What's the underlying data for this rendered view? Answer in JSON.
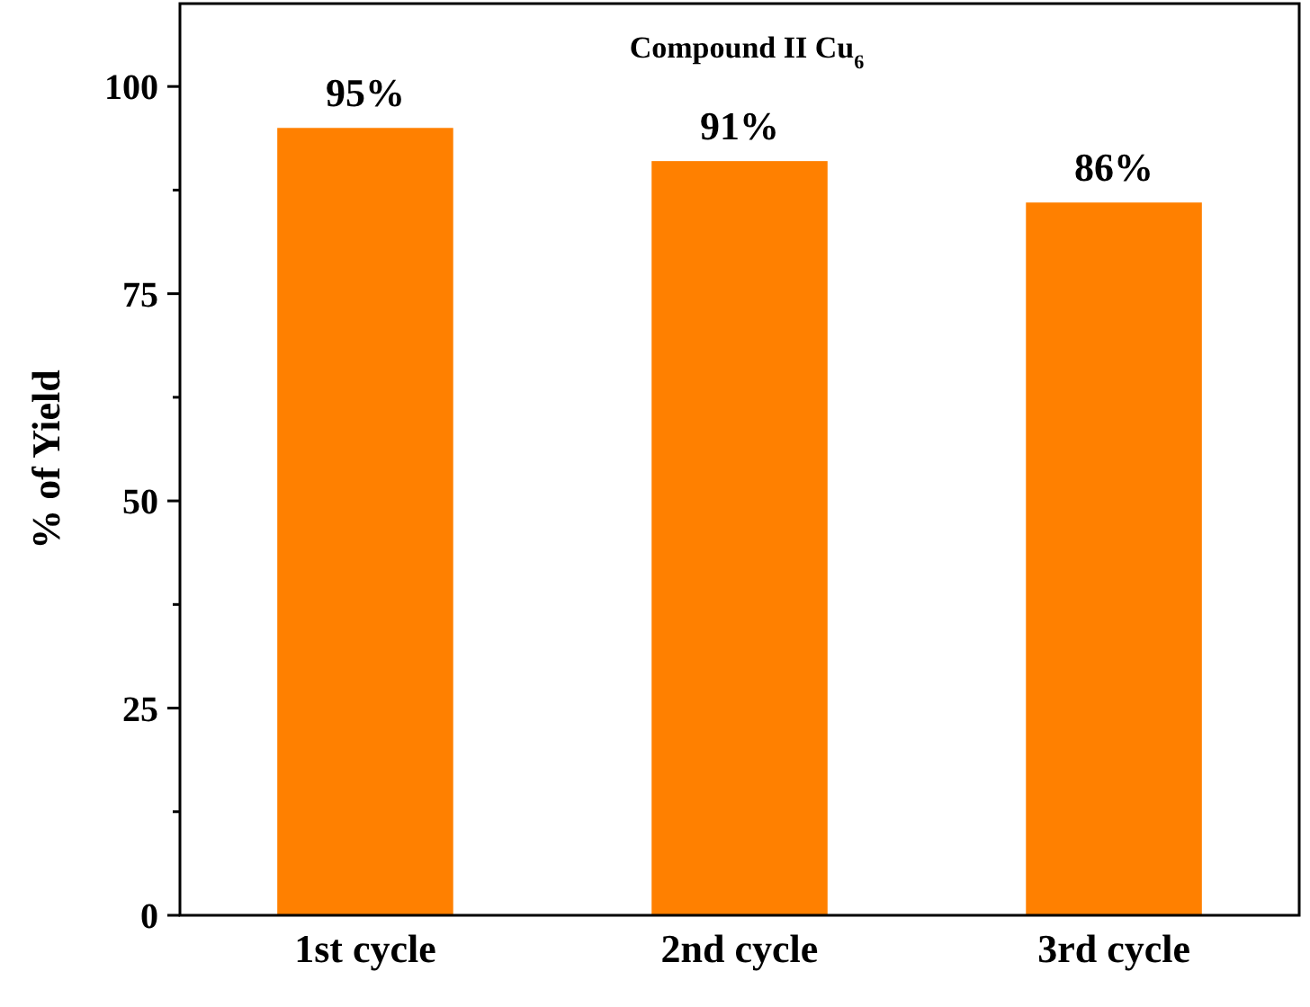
{
  "chart_data": {
    "type": "bar",
    "title": "Compound II Cu$_{6}$",
    "ylabel": "% of Yield",
    "categories": [
      "1st cycle",
      "2nd cycle",
      "3rd cycle"
    ],
    "values": [
      95,
      91,
      86
    ],
    "value_labels": [
      "95%",
      "91%",
      "86%"
    ],
    "color": "#ff8000",
    "ylim": [
      0,
      110
    ],
    "yticks": [
      0,
      {
        "value": 12.5,
        "label": null
      },
      25,
      {
        "value": 37.5,
        "label": null
      },
      50,
      {
        "value": 62.5,
        "label": null
      },
      75,
      {
        "value": 87.5,
        "label": null
      },
      100
    ],
    "grid": false
  }
}
